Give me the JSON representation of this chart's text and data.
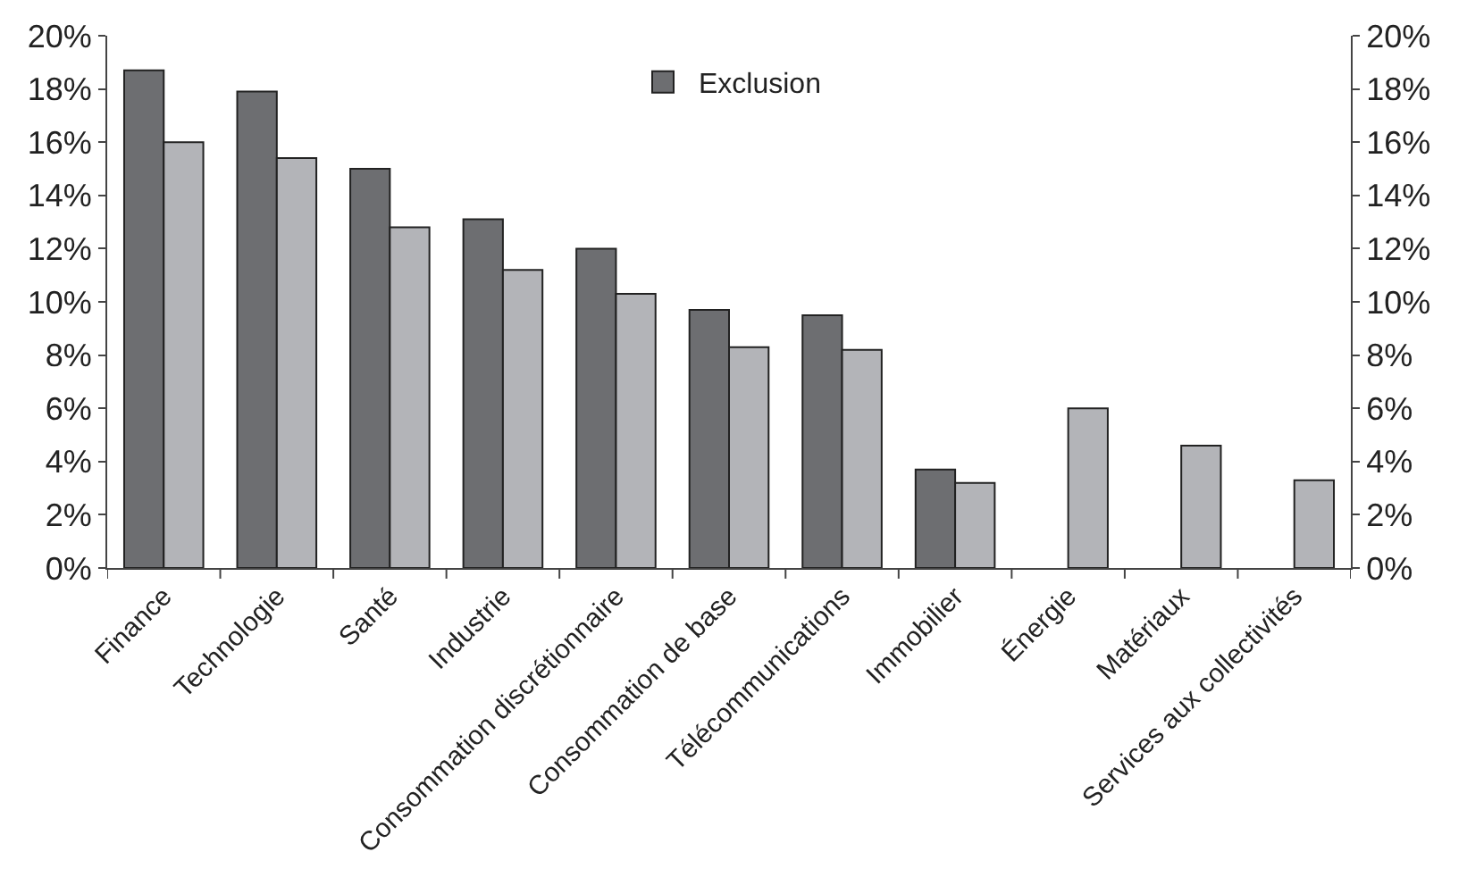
{
  "chart_data": {
    "type": "bar",
    "categories": [
      "Finance",
      "Technologie",
      "Santé",
      "Industrie",
      "Consommation discrétionnaire",
      "Consommation de base",
      "Télécommunications",
      "Immobilier",
      "Énergie",
      "Matériaux",
      "Services aux collectivités"
    ],
    "series": [
      {
        "name": "Exclusion",
        "color": "#6d6e71",
        "values": [
          18.7,
          17.9,
          15.0,
          13.1,
          12.0,
          9.7,
          9.5,
          3.7,
          null,
          null,
          null
        ]
      },
      {
        "color": "#b3b4b8",
        "values": [
          16.0,
          15.4,
          12.8,
          11.2,
          10.3,
          8.3,
          8.2,
          3.2,
          6.0,
          4.6,
          3.3
        ]
      }
    ],
    "ylim": [
      0,
      20
    ],
    "yticks": [
      {
        "value": 0,
        "label": "0%"
      },
      {
        "value": 2,
        "label": "2%"
      },
      {
        "value": 4,
        "label": "4%"
      },
      {
        "value": 6,
        "label": "6%"
      },
      {
        "value": 8,
        "label": "8%"
      },
      {
        "value": 10,
        "label": "10%"
      },
      {
        "value": 12,
        "label": "12%"
      },
      {
        "value": 14,
        "label": "14%"
      },
      {
        "value": 16,
        "label": "16%"
      },
      {
        "value": 18,
        "label": "18%"
      },
      {
        "value": 20,
        "label": "20%"
      }
    ],
    "y2lim": [
      0,
      20
    ],
    "y2ticks": [
      {
        "value": 0,
        "label": "0%"
      },
      {
        "value": 2,
        "label": "2%"
      },
      {
        "value": 4,
        "label": "4%"
      },
      {
        "value": 6,
        "label": "6%"
      },
      {
        "value": 8,
        "label": "8%"
      },
      {
        "value": 10,
        "label": "10%"
      },
      {
        "value": 12,
        "label": "12%"
      },
      {
        "value": 14,
        "label": "14%"
      },
      {
        "value": 16,
        "label": "16%"
      },
      {
        "value": 18,
        "label": "18%"
      },
      {
        "value": 20,
        "label": "20%"
      }
    ],
    "legend": "top"
  }
}
